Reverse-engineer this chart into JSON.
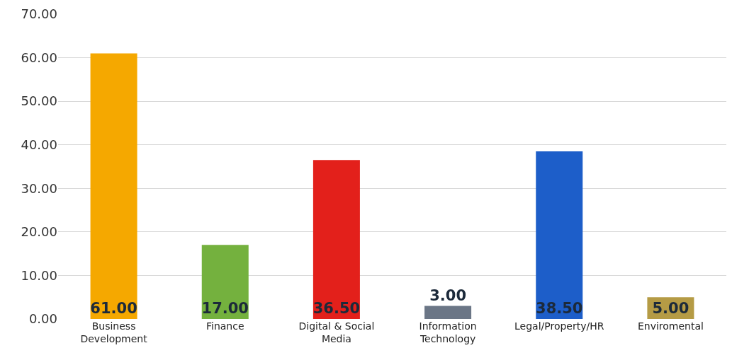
{
  "chart_data": {
    "type": "bar",
    "categories": [
      "Business Development",
      "Finance",
      "Digital & Social Media",
      "Information Technology",
      "Legal/Property/HR",
      "Enviromental"
    ],
    "values": [
      61,
      17,
      36.5,
      3,
      38.5,
      5
    ],
    "colors": [
      "#f5a800",
      "#74b13e",
      "#e3201b",
      "#6b7686",
      "#1d5ec9",
      "#b59b45"
    ],
    "value_labels": [
      "61.00",
      "17.00",
      "36.50",
      "3.00",
      "38.50",
      "5.00"
    ],
    "ylim": [
      0,
      70
    ],
    "yticks": [
      {
        "value": 0,
        "label": "0.00"
      },
      {
        "value": 10,
        "label": "10.00"
      },
      {
        "value": 20,
        "label": "20.00"
      },
      {
        "value": 30,
        "label": "30.00"
      },
      {
        "value": 40,
        "label": "40.00"
      },
      {
        "value": 50,
        "label": "50.00"
      },
      {
        "value": 60,
        "label": "60.00"
      },
      {
        "value": 70,
        "label": "70.00"
      }
    ],
    "grid": "y"
  }
}
